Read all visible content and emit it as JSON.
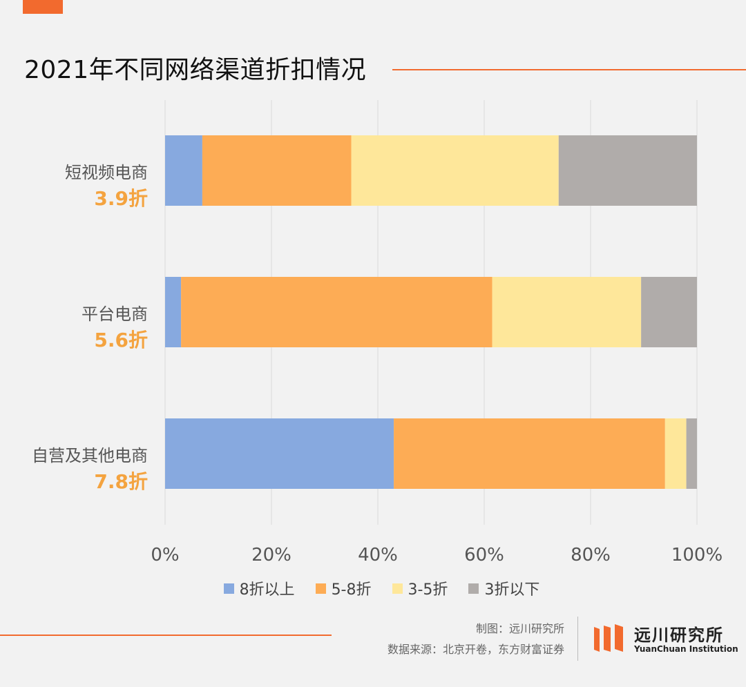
{
  "title": "2021年不同网络渠道折扣情况",
  "colors": {
    "accent": "#f26a2e",
    "series": [
      "#87a9df",
      "#fdac55",
      "#fee79a",
      "#b0acaa"
    ],
    "highlight": "#f4a33f"
  },
  "chart_data": {
    "type": "bar",
    "orientation": "horizontal",
    "stacked": true,
    "categories": [
      "短视频电商",
      "平台电商",
      "自营及其他电商"
    ],
    "category_subtitles": [
      "3.9折",
      "5.6折",
      "7.8折"
    ],
    "series": [
      {
        "name": "8折以上",
        "values": [
          7,
          3,
          43
        ]
      },
      {
        "name": "5-8折",
        "values": [
          28,
          58.5,
          51
        ]
      },
      {
        "name": "3-5折",
        "values": [
          39,
          28,
          4
        ]
      },
      {
        "name": "3折以下",
        "values": [
          26,
          10.5,
          2
        ]
      }
    ],
    "xlim": [
      0,
      100
    ],
    "x_ticks": [
      "0%",
      "20%",
      "40%",
      "60%",
      "80%",
      "100%"
    ],
    "grid": true,
    "legend_position": "bottom"
  },
  "footer": {
    "maker": "制图：远川研究所",
    "source": "数据来源：北京开卷，东方财富证券"
  },
  "logo": {
    "name_cn": "远川研究所",
    "name_en": "YuanChuan Institution"
  }
}
